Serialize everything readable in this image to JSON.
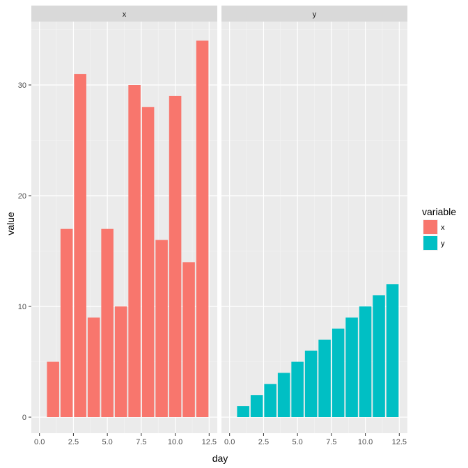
{
  "chart_data": {
    "type": "bar",
    "x_label": "day",
    "y_label": "value",
    "xlim": [
      0,
      12.5
    ],
    "ylim": [
      0,
      34
    ],
    "x_ticks": [
      "0.0",
      "2.5",
      "5.0",
      "7.5",
      "10.0",
      "12.5"
    ],
    "x_tick_values": [
      0,
      2.5,
      5,
      7.5,
      10,
      12.5
    ],
    "y_ticks": [
      "0",
      "10",
      "20",
      "30"
    ],
    "y_tick_values": [
      0,
      10,
      20,
      30
    ],
    "grid": true,
    "legend_position": "right",
    "legend": {
      "title": "variable",
      "entries": [
        {
          "label": "x",
          "color": "#F8766D"
        },
        {
          "label": "y",
          "color": "#00BFC4"
        }
      ]
    },
    "facets": [
      {
        "strip_label": "x",
        "color": "#F8766D",
        "x": [
          1,
          2,
          3,
          4,
          5,
          6,
          7,
          8,
          9,
          10,
          11,
          12
        ],
        "values": [
          5,
          17,
          31,
          9,
          17,
          10,
          30,
          28,
          16,
          29,
          14,
          34
        ]
      },
      {
        "strip_label": "y",
        "color": "#00BFC4",
        "x": [
          1,
          2,
          3,
          4,
          5,
          6,
          7,
          8,
          9,
          10,
          11,
          12
        ],
        "values": [
          1,
          2,
          3,
          4,
          5,
          6,
          7,
          8,
          9,
          10,
          11,
          12
        ]
      }
    ]
  }
}
